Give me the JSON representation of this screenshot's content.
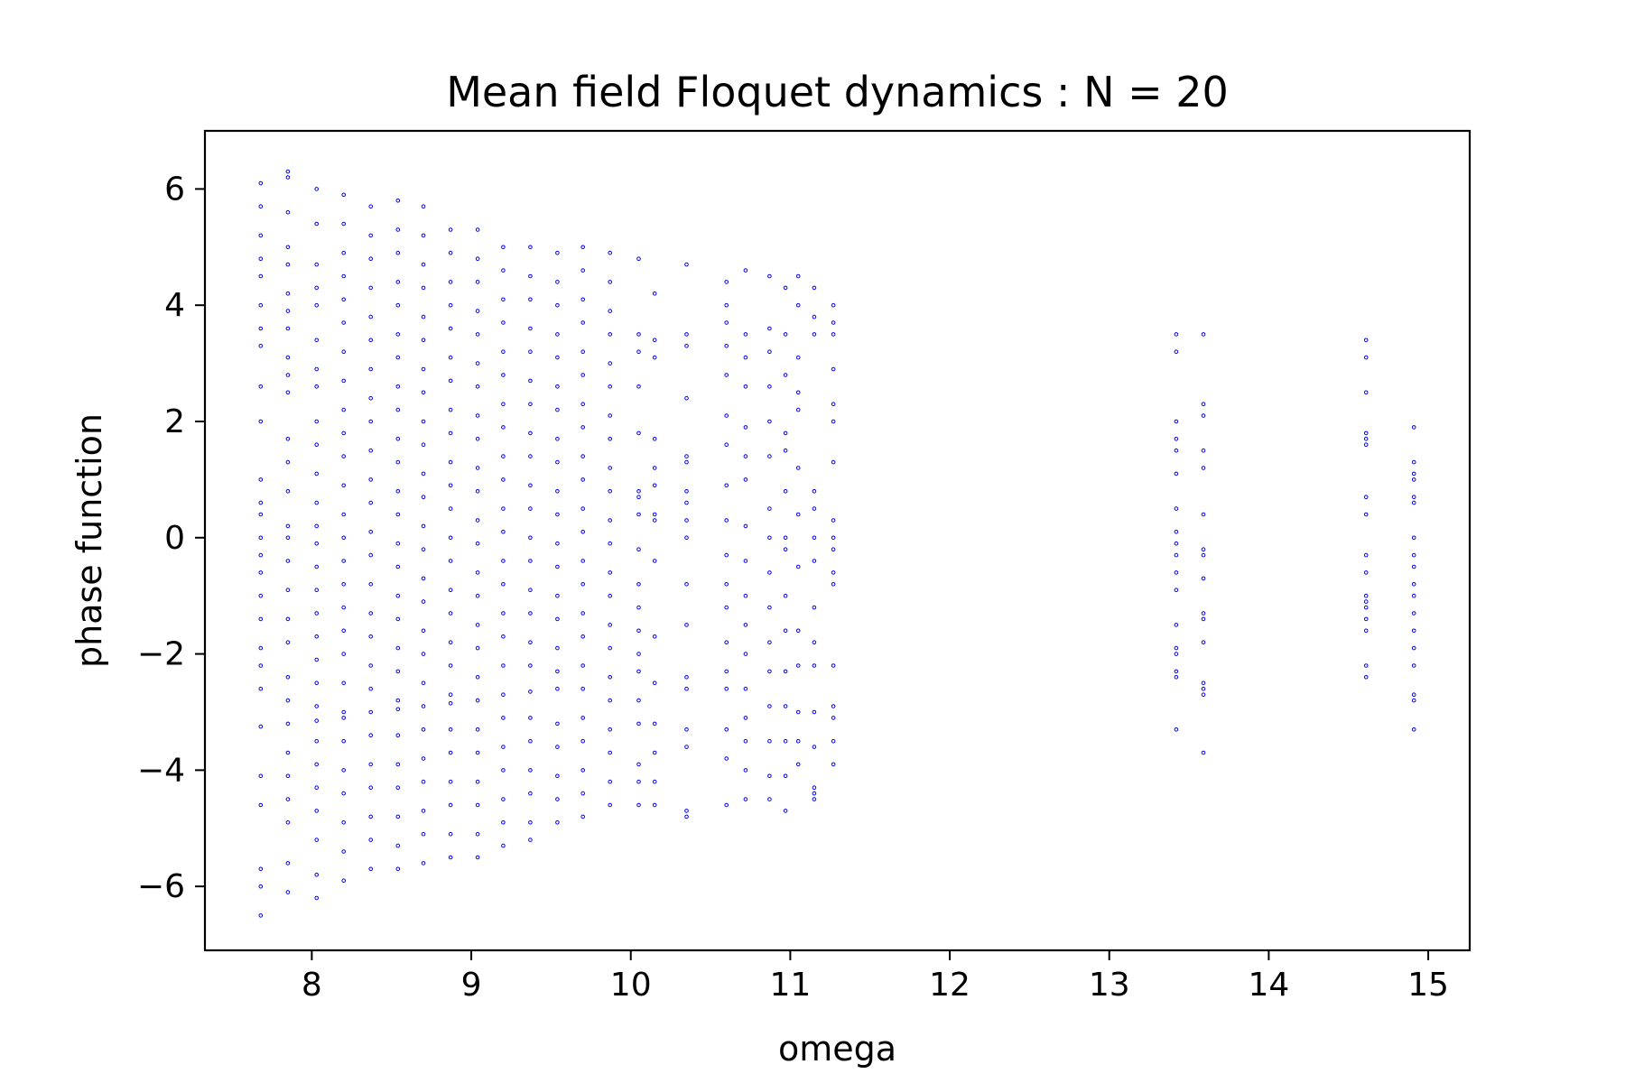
{
  "chart_data": {
    "type": "scatter",
    "title": "Mean field Floquet dynamics : N = 20",
    "xlabel": "omega",
    "ylabel": "phase function",
    "xlim": [
      7.33,
      15.26
    ],
    "ylim": [
      -7.1,
      7.0
    ],
    "xticks": [
      8,
      9,
      10,
      11,
      12,
      13,
      14,
      15
    ],
    "xtick_labels": [
      "8",
      "9",
      "10",
      "11",
      "12",
      "13",
      "14",
      "15"
    ],
    "yticks": [
      -6,
      -4,
      -2,
      0,
      2,
      4,
      6
    ],
    "ytick_labels": [
      "−6",
      "−4",
      "−2",
      "0",
      "2",
      "4",
      "6"
    ],
    "grid": false,
    "marker_color": "#0000ff",
    "series": [
      {
        "columns": [
          {
            "x": 7.68,
            "y": [
              6.1,
              5.7,
              5.2,
              4.8,
              4.5,
              4.0,
              3.6,
              3.3,
              2.6,
              2.0,
              1.0,
              0.6,
              0.4,
              0.0,
              -0.3,
              -0.6,
              -1.0,
              -1.4,
              -1.9,
              -2.2,
              -2.6,
              -3.25,
              -4.1,
              -4.6,
              -5.7,
              -6.0,
              -6.5
            ]
          },
          {
            "x": 7.85,
            "y": [
              6.3,
              6.2,
              5.6,
              5.0,
              4.7,
              4.2,
              3.9,
              3.6,
              3.1,
              2.8,
              2.5,
              1.7,
              1.3,
              0.8,
              0.2,
              0.0,
              -0.4,
              -0.9,
              -1.4,
              -1.8,
              -2.4,
              -2.8,
              -3.2,
              -3.7,
              -4.1,
              -4.5,
              -4.9,
              -5.6,
              -6.1
            ]
          },
          {
            "x": 8.03,
            "y": [
              6.0,
              5.4,
              4.7,
              4.3,
              4.0,
              3.4,
              2.9,
              2.6,
              2.0,
              1.6,
              1.1,
              0.6,
              0.2,
              -0.1,
              -0.5,
              -0.9,
              -1.3,
              -1.7,
              -2.1,
              -2.5,
              -2.9,
              -3.15,
              -3.5,
              -3.9,
              -4.3,
              -4.7,
              -5.2,
              -5.8,
              -6.2
            ]
          },
          {
            "x": 8.2,
            "y": [
              5.9,
              5.4,
              4.9,
              4.5,
              4.1,
              3.7,
              3.2,
              2.7,
              2.2,
              1.8,
              1.4,
              0.9,
              0.4,
              0.0,
              -0.4,
              -0.8,
              -1.2,
              -1.6,
              -2.0,
              -2.5,
              -3.0,
              -3.1,
              -3.5,
              -4.0,
              -4.4,
              -4.9,
              -5.4,
              -5.9
            ]
          },
          {
            "x": 8.37,
            "y": [
              5.7,
              5.2,
              4.8,
              4.3,
              3.8,
              3.4,
              2.9,
              2.4,
              2.0,
              1.5,
              1.0,
              0.6,
              0.1,
              -0.3,
              -0.8,
              -1.3,
              -1.7,
              -2.2,
              -2.6,
              -3.0,
              -3.4,
              -3.9,
              -4.3,
              -4.8,
              -5.2,
              -5.7
            ]
          },
          {
            "x": 8.54,
            "y": [
              5.8,
              5.3,
              4.9,
              4.4,
              4.0,
              3.5,
              3.1,
              2.6,
              2.2,
              1.7,
              1.3,
              0.8,
              0.4,
              -0.1,
              -0.5,
              -1.0,
              -1.4,
              -1.9,
              -2.3,
              -2.8,
              -2.95,
              -3.4,
              -3.9,
              -4.3,
              -4.8,
              -5.3,
              -5.7
            ]
          },
          {
            "x": 8.7,
            "y": [
              5.7,
              5.2,
              4.7,
              4.3,
              3.8,
              3.4,
              2.9,
              2.5,
              2.0,
              1.6,
              1.1,
              0.7,
              0.2,
              -0.2,
              -0.7,
              -1.1,
              -1.6,
              -2.0,
              -2.5,
              -2.9,
              -3.3,
              -3.8,
              -4.2,
              -4.7,
              -5.1,
              -5.6
            ]
          },
          {
            "x": 8.87,
            "y": [
              5.3,
              4.9,
              4.4,
              4.0,
              3.6,
              3.1,
              2.7,
              2.2,
              1.8,
              1.3,
              0.9,
              0.5,
              0.0,
              -0.4,
              -0.9,
              -1.3,
              -1.8,
              -2.2,
              -2.7,
              -2.85,
              -3.3,
              -3.7,
              -4.2,
              -4.6,
              -5.1,
              -5.5
            ]
          },
          {
            "x": 9.04,
            "y": [
              5.3,
              4.8,
              4.4,
              3.9,
              3.5,
              3.0,
              2.6,
              2.1,
              1.7,
              1.2,
              0.8,
              0.3,
              -0.1,
              -0.6,
              -1.0,
              -1.5,
              -1.9,
              -2.4,
              -2.8,
              -3.3,
              -3.7,
              -4.2,
              -4.6,
              -5.1,
              -5.5
            ]
          },
          {
            "x": 9.2,
            "y": [
              5.0,
              4.6,
              4.1,
              3.7,
              3.2,
              2.8,
              2.3,
              1.9,
              1.4,
              1.0,
              0.5,
              0.1,
              -0.4,
              -0.8,
              -1.3,
              -1.7,
              -2.2,
              -2.7,
              -3.1,
              -3.6,
              -4.0,
              -4.5,
              -4.9,
              -5.3
            ]
          },
          {
            "x": 9.37,
            "y": [
              5.0,
              4.5,
              4.1,
              3.6,
              3.2,
              2.7,
              2.3,
              1.8,
              1.4,
              0.9,
              0.5,
              0.0,
              -0.4,
              -0.9,
              -1.3,
              -1.8,
              -2.2,
              -2.65,
              -3.1,
              -3.5,
              -4.0,
              -4.4,
              -4.9,
              -5.2
            ]
          },
          {
            "x": 9.54,
            "y": [
              4.9,
              4.4,
              4.0,
              3.5,
              3.1,
              2.6,
              2.2,
              1.7,
              1.3,
              0.8,
              0.4,
              -0.1,
              -0.5,
              -1.0,
              -1.4,
              -1.9,
              -2.3,
              -2.6,
              -3.2,
              -3.6,
              -4.1,
              -4.5,
              -4.9
            ]
          },
          {
            "x": 9.7,
            "y": [
              5.0,
              4.6,
              4.1,
              3.7,
              3.2,
              2.8,
              2.3,
              1.9,
              1.4,
              1.0,
              0.5,
              0.1,
              -0.4,
              -0.8,
              -1.3,
              -1.7,
              -2.2,
              -2.6,
              -3.1,
              -3.5,
              -4.0,
              -4.4,
              -4.8
            ]
          },
          {
            "x": 9.87,
            "y": [
              4.9,
              4.4,
              3.9,
              3.5,
              3.0,
              2.6,
              2.1,
              1.7,
              1.2,
              0.8,
              0.3,
              -0.1,
              -0.6,
              -1.0,
              -1.5,
              -1.9,
              -2.4,
              -2.8,
              -3.3,
              -3.7,
              -4.2,
              -4.6
            ]
          },
          {
            "x": 10.05,
            "y": [
              4.8,
              3.5,
              3.2,
              2.6,
              1.8,
              0.8,
              0.7,
              0.4,
              -0.2,
              -0.8,
              -1.2,
              -1.6,
              -2.0,
              -2.3,
              -2.8,
              -3.2,
              -3.9,
              -4.2,
              -4.6
            ]
          },
          {
            "x": 10.15,
            "y": [
              4.2,
              3.4,
              3.1,
              1.7,
              1.2,
              0.9,
              0.4,
              0.3,
              -0.4,
              -1.7,
              -2.5,
              -3.2,
              -3.7,
              -4.2,
              -4.6
            ]
          },
          {
            "x": 10.35,
            "y": [
              4.7,
              3.5,
              3.3,
              2.4,
              1.4,
              1.3,
              0.8,
              0.6,
              0.3,
              0.0,
              -0.8,
              -1.5,
              -2.4,
              -2.6,
              -3.3,
              -3.6,
              -4.7,
              -4.8
            ]
          },
          {
            "x": 10.6,
            "y": [
              4.4,
              4.0,
              3.7,
              3.3,
              2.8,
              2.1,
              1.6,
              0.9,
              0.3,
              -0.3,
              -0.8,
              -1.2,
              -1.8,
              -2.3,
              -2.6,
              -3.3,
              -3.8,
              -4.6
            ]
          },
          {
            "x": 10.72,
            "y": [
              4.6,
              3.5,
              3.1,
              2.6,
              1.9,
              1.4,
              1.0,
              0.2,
              -0.4,
              -1.0,
              -1.5,
              -2.0,
              -2.6,
              -3.1,
              -3.5,
              -4.0,
              -4.5
            ]
          },
          {
            "x": 10.87,
            "y": [
              4.5,
              3.6,
              3.2,
              2.6,
              2.0,
              1.4,
              0.5,
              0.0,
              -0.6,
              -1.2,
              -1.8,
              -2.3,
              -2.9,
              -3.5,
              -4.1,
              -4.5
            ]
          },
          {
            "x": 10.97,
            "y": [
              4.3,
              3.5,
              2.8,
              1.8,
              1.5,
              0.8,
              0.0,
              -0.2,
              -1.0,
              -1.6,
              -2.3,
              -2.9,
              -3.5,
              -4.1,
              -4.7
            ]
          },
          {
            "x": 11.05,
            "y": [
              4.5,
              4.0,
              3.1,
              2.5,
              2.2,
              1.2,
              0.4,
              -0.5,
              -1.6,
              -2.2,
              -3.0,
              -3.5,
              -3.9
            ]
          },
          {
            "x": 11.15,
            "y": [
              4.3,
              3.8,
              3.5,
              0.8,
              0.5,
              0.0,
              -0.4,
              -1.2,
              -1.8,
              -2.2,
              -3.0,
              -3.6,
              -4.3,
              -4.4,
              -4.5
            ]
          },
          {
            "x": 11.27,
            "y": [
              4.0,
              3.7,
              3.5,
              2.9,
              2.3,
              2.0,
              1.3,
              0.3,
              0.0,
              -0.2,
              -0.6,
              -0.8,
              -2.2,
              -2.9,
              -3.1,
              -3.5,
              -3.9
            ]
          },
          {
            "x": 13.42,
            "y": [
              3.5,
              3.2,
              2.0,
              1.7,
              1.5,
              1.1,
              0.5,
              0.1,
              -0.1,
              -0.3,
              -0.6,
              -0.9,
              -1.5,
              -1.9,
              -2.0,
              -2.3,
              -2.4,
              -3.3
            ]
          },
          {
            "x": 13.59,
            "y": [
              3.5,
              2.3,
              2.1,
              1.5,
              1.2,
              0.4,
              -0.2,
              -0.3,
              -0.7,
              -1.3,
              -1.4,
              -1.8,
              -2.5,
              -2.6,
              -2.7,
              -3.7
            ]
          },
          {
            "x": 14.61,
            "y": [
              3.4,
              3.1,
              2.5,
              1.8,
              1.7,
              1.6,
              0.7,
              0.4,
              -0.3,
              -0.6,
              -1.0,
              -1.1,
              -1.2,
              -1.4,
              -1.6,
              -2.2,
              -2.4
            ]
          },
          {
            "x": 14.91,
            "y": [
              1.9,
              1.3,
              1.1,
              1.0,
              0.7,
              0.6,
              0.0,
              -0.3,
              -0.5,
              -0.8,
              -1.0,
              -1.3,
              -1.6,
              -1.9,
              -2.2,
              -2.7,
              -2.8,
              -3.3
            ]
          }
        ]
      }
    ]
  }
}
